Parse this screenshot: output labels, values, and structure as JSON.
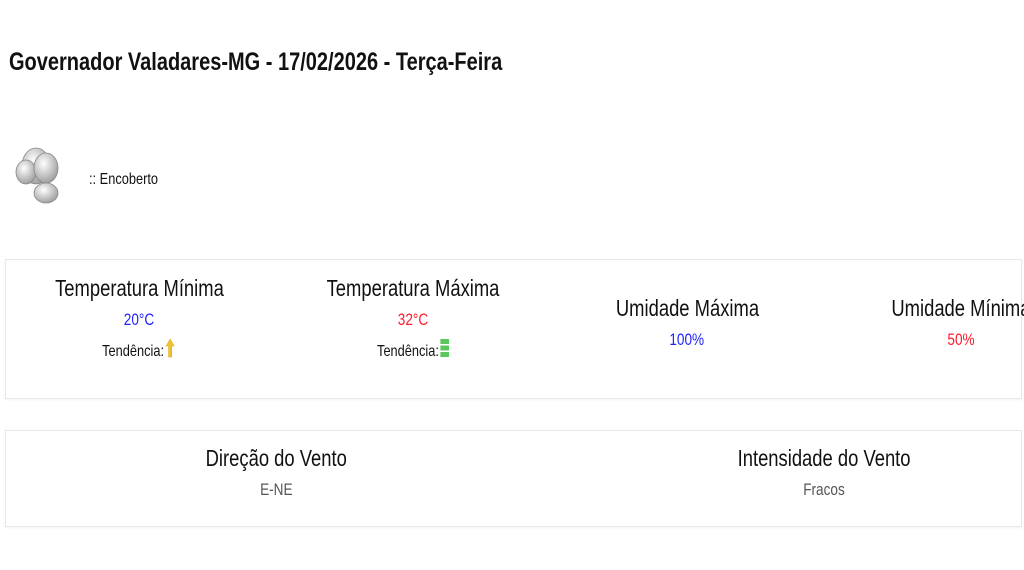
{
  "header": {
    "title": "Governador Valadares-MG - 17/02/2026 - Terça-Feira"
  },
  "condition": {
    "icon": "overcast-cloud-icon",
    "text": ":: Encoberto"
  },
  "stats": [
    {
      "label": "Temperatura Mínima",
      "value": "20°C",
      "color": "#2222ff",
      "trend_label": "Tendência:",
      "trend_icon": "arrow-up-icon"
    },
    {
      "label": "Temperatura Máxima",
      "value": "32°C",
      "color": "#ff1a2a",
      "trend_label": "Tendência:",
      "trend_icon": "stable-icon"
    },
    {
      "label": "Umidade Máxima",
      "value": "100%",
      "color": "#2222ff"
    },
    {
      "label": "Umidade Mínima",
      "value": "50%",
      "color": "#ff1a2a"
    }
  ],
  "wind": [
    {
      "label": "Direção do Vento",
      "value": "E-NE"
    },
    {
      "label": "Intensidade do Vento",
      "value": "Fracos"
    }
  ]
}
